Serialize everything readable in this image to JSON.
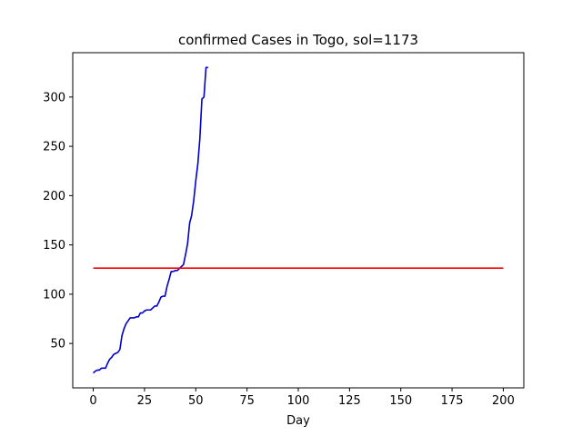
{
  "chart_data": {
    "type": "line",
    "title": "confirmed Cases in Togo, sol=1173",
    "xlabel": "Day",
    "ylabel": "",
    "xlim": [
      -10,
      210
    ],
    "ylim": [
      5,
      345
    ],
    "xticks": [
      0,
      25,
      50,
      75,
      100,
      125,
      150,
      175,
      200
    ],
    "yticks": [
      50,
      100,
      150,
      200,
      250,
      300
    ],
    "grid": false,
    "series": [
      {
        "color": "#0000cc",
        "x": [
          0,
          1,
          2,
          3,
          4,
          5,
          6,
          7,
          8,
          9,
          10,
          11,
          12,
          13,
          14,
          15,
          16,
          17,
          18,
          19,
          20,
          21,
          22,
          23,
          24,
          25,
          26,
          27,
          28,
          29,
          30,
          31,
          32,
          33,
          34,
          35,
          36,
          37,
          38,
          39,
          40,
          41,
          42,
          43,
          44,
          45,
          46,
          47,
          48,
          49,
          50,
          51,
          52,
          53,
          54,
          55,
          56
        ],
        "y": [
          20,
          22,
          23,
          23,
          25,
          25,
          25,
          30,
          34,
          36,
          39,
          40,
          41,
          44,
          58,
          65,
          70,
          73,
          76,
          76,
          76,
          77,
          77,
          81,
          81,
          83,
          84,
          84,
          84,
          86,
          88,
          88,
          92,
          97,
          98,
          98,
          108,
          115,
          123,
          123,
          124,
          124,
          126,
          128,
          130,
          140,
          151,
          172,
          180,
          195,
          215,
          232,
          258,
          298,
          300,
          330,
          330
        ]
      },
      {
        "color": "#ff0000",
        "x": [
          0,
          200
        ],
        "y": [
          126.5,
          126.5
        ]
      }
    ]
  }
}
